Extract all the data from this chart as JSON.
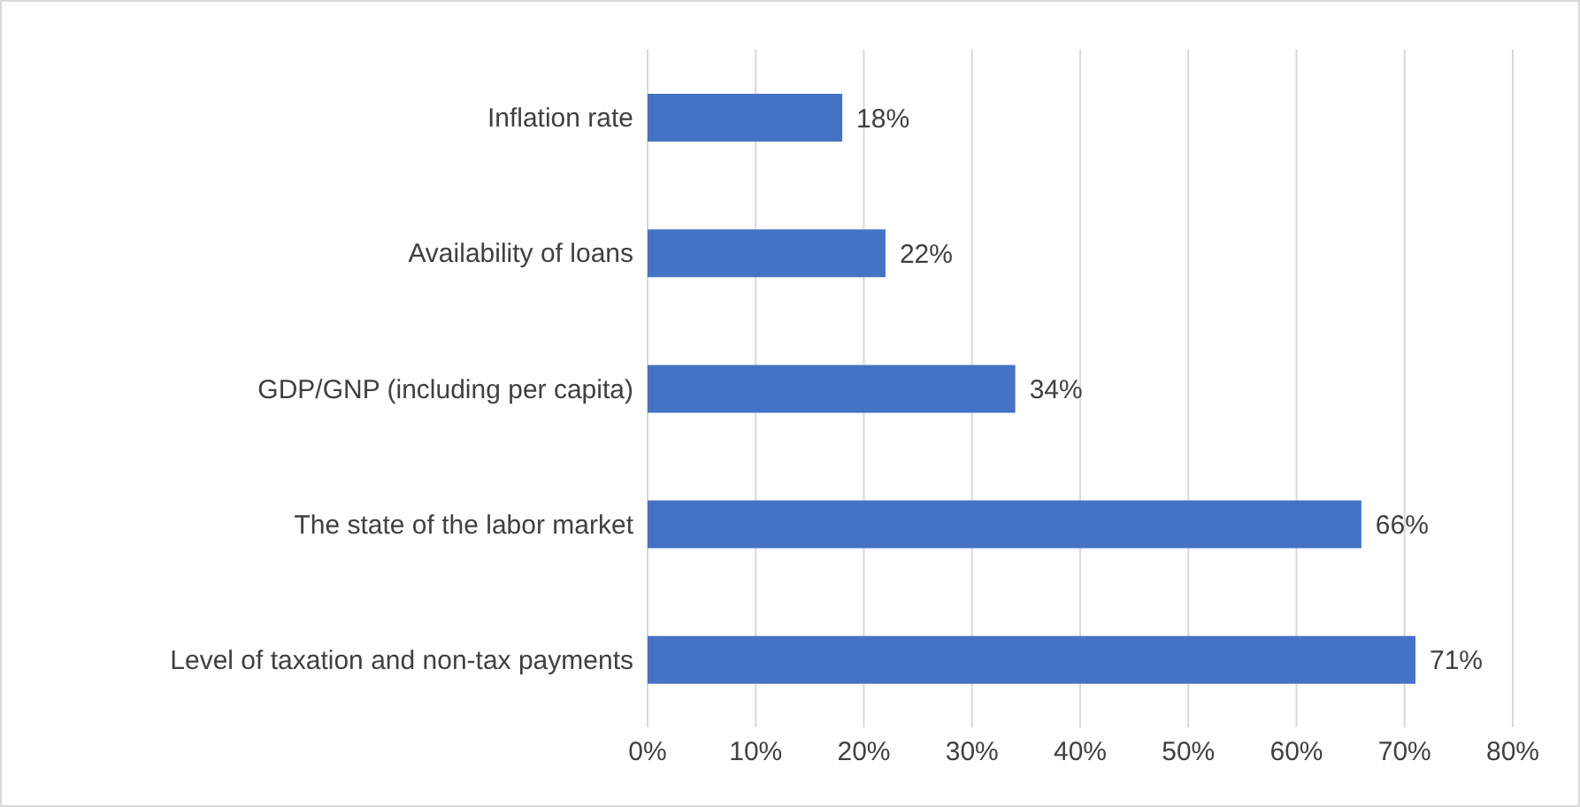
{
  "chart_data": {
    "type": "bar",
    "orientation": "horizontal",
    "categories": [
      "Inflation rate",
      "Availability of loans",
      "GDP/GNP (including per capita)",
      "The state of the labor market",
      "Level of taxation and non-tax payments"
    ],
    "values": [
      18,
      22,
      34,
      66,
      71
    ],
    "color": "#4472c4",
    "value_labels": [
      "18%",
      "22%",
      "34%",
      "66%",
      "71%"
    ],
    "xlim": [
      0,
      80
    ],
    "xticks": [
      {
        "value": 0,
        "label": "0%"
      },
      {
        "value": 10,
        "label": "10%"
      },
      {
        "value": 20,
        "label": "20%"
      },
      {
        "value": 30,
        "label": "30%"
      },
      {
        "value": 40,
        "label": "40%"
      },
      {
        "value": 50,
        "label": "50%"
      },
      {
        "value": 60,
        "label": "60%"
      },
      {
        "value": 70,
        "label": "70%"
      },
      {
        "value": 80,
        "label": "80%"
      }
    ],
    "grid": "x",
    "legend": false
  }
}
